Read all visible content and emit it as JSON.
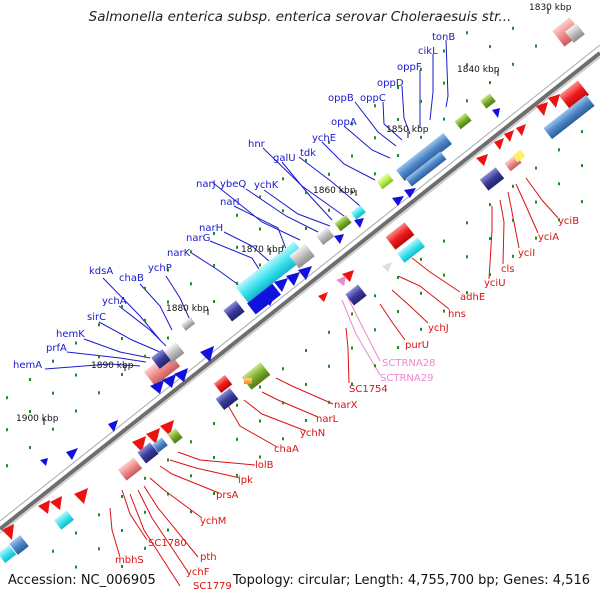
{
  "title": "Salmonella enterica subsp. enterica serovar Choleraesuis str...",
  "footer": {
    "accession": "Accession: NC_006905",
    "summary": "Topology: circular; Length: 4,755,700 bp; Genes: 4,516"
  },
  "colors": {
    "forward_label": "#1a1acc",
    "reverse_label": "#dd1111",
    "rna_label": "#ee88cc",
    "backbone": "#888888"
  },
  "kbp_ticks": [
    "1830 kbp",
    "1840 kbp",
    "1850 kbp",
    "1860 kbp",
    "1870 kbp",
    "1880 kbp",
    "1890 kbp",
    "1900 kbp"
  ],
  "forward_genes": [
    "tonB",
    "cikL",
    "oppF",
    "oppD",
    "oppC",
    "oppB",
    "oppA",
    "ychE",
    "tdk",
    "hnr",
    "galU",
    "ychK",
    "narJ",
    "ybeQ",
    "narI",
    "narH",
    "narG",
    "narK",
    "ychP",
    "chaB",
    "kdsA",
    "ychA",
    "sirC",
    "hemK",
    "prfA",
    "hemA"
  ],
  "reverse_genes": [
    "yciB",
    "yciA",
    "yciI",
    "cls",
    "yciU",
    "adhE",
    "hns",
    "ychJ",
    "purU",
    "SC1754",
    "narX",
    "narL",
    "ychN",
    "chaA",
    "lolB",
    "ipk",
    "prsA",
    "ychM",
    "pth",
    "ychF",
    "SC1779",
    "SC1780",
    "mbhS"
  ],
  "rna_genes": [
    "SCTRNA28",
    "SCTRNA29"
  ]
}
